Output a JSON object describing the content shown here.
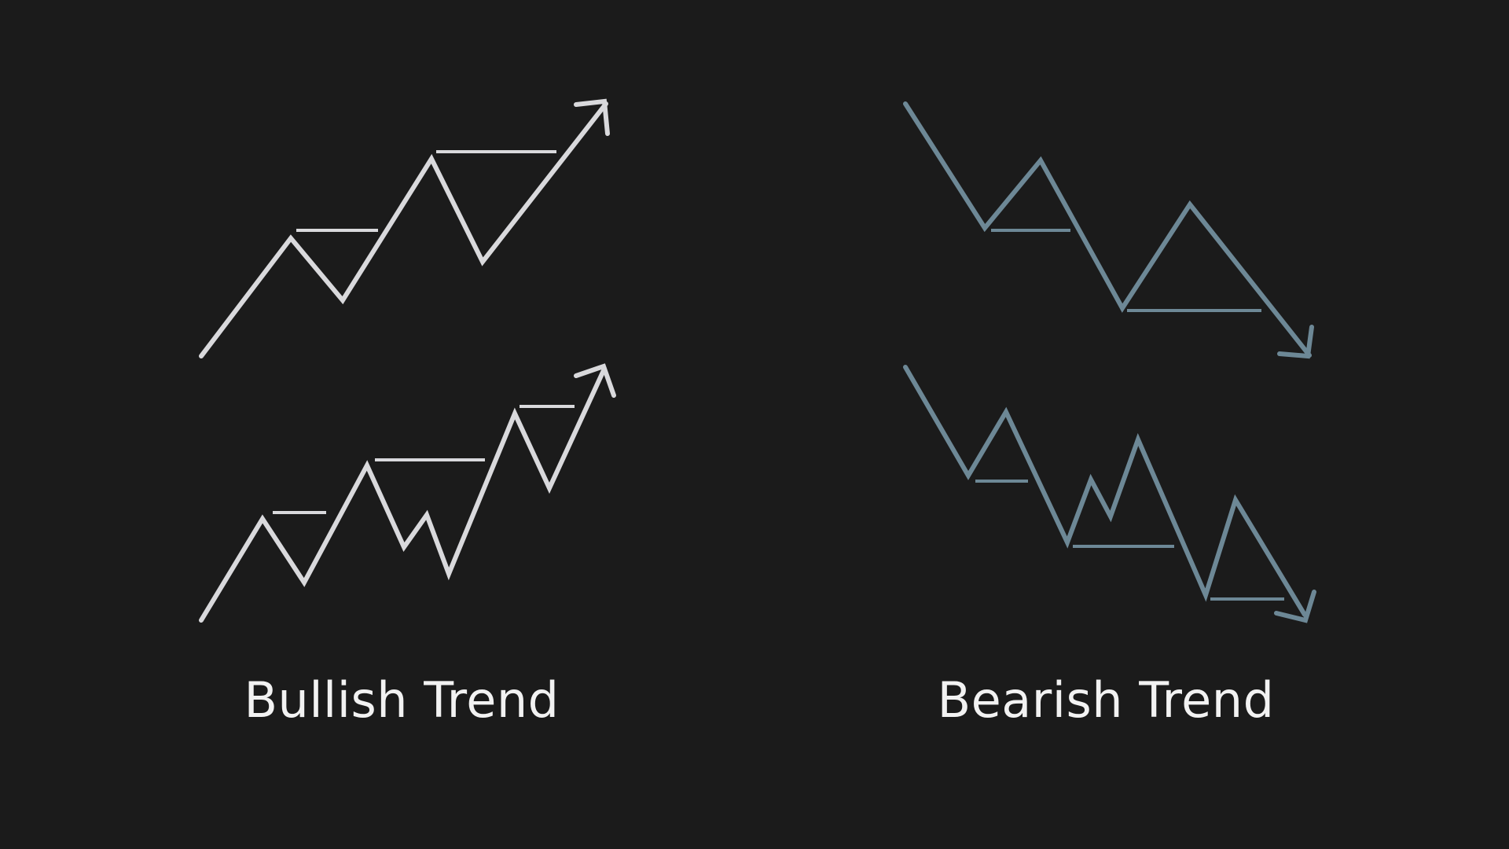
{
  "colors": {
    "background": "#1b1b1b",
    "bullish": "#d9d9dc",
    "bearish": "#6d8896",
    "label_text": "#f2f2f2"
  },
  "labels": {
    "bullish": "Bullish Trend",
    "bearish": "Bearish Trend"
  },
  "panels": [
    {
      "name": "bullish",
      "direction": "up",
      "patterns": [
        {
          "name": "bullish-upper-zigzag",
          "swing_count": 6,
          "arrow": "up-right",
          "level_lines": 2
        },
        {
          "name": "bullish-lower-zigzag",
          "swing_count": 9,
          "arrow": "up-right",
          "level_lines": 3
        }
      ]
    },
    {
      "name": "bearish",
      "direction": "down",
      "patterns": [
        {
          "name": "bearish-upper-zigzag",
          "swing_count": 6,
          "arrow": "down-right",
          "level_lines": 2
        },
        {
          "name": "bearish-lower-zigzag",
          "swing_count": 9,
          "arrow": "down-right",
          "level_lines": 3
        }
      ]
    }
  ]
}
